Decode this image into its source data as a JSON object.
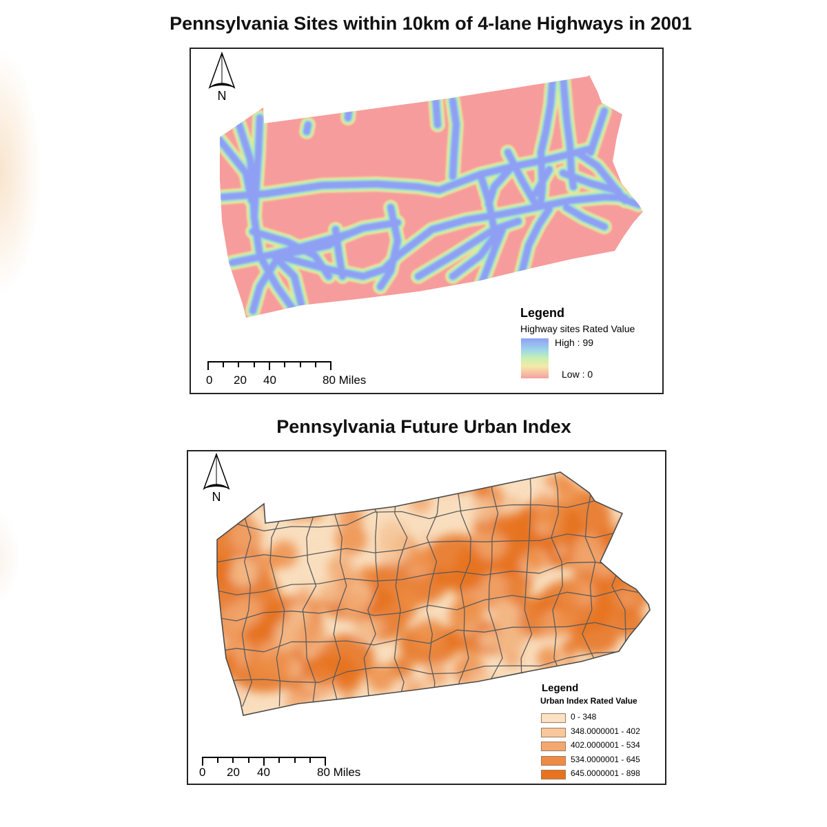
{
  "maps": [
    {
      "title": "Pennsylvania Sites within 10km of 4-lane Highways in 2001",
      "north_label": "N",
      "legend": {
        "title": "Legend",
        "subtitle": "Highway sites Rated Value",
        "high_label": "High : 99",
        "low_label": "Low : 0",
        "ramp_colors": [
          "#8ea0f6",
          "#9fd8e8",
          "#c8f0b0",
          "#f5e9a8",
          "#f6a0a0"
        ]
      },
      "scale": {
        "ticks": [
          "0",
          "20",
          "40",
          "80 Miles"
        ]
      },
      "colors": {
        "background": "#f69c9c",
        "highway": "#8fa0f4",
        "halo": "#a6e3cf"
      }
    },
    {
      "title": "Pennsylvania Future Urban Index",
      "north_label": "N",
      "legend": {
        "title": "Legend",
        "subtitle": "Urban Index Rated Value",
        "classes": [
          {
            "label": "0 - 348",
            "color": "#fbe2c4"
          },
          {
            "label": "348.0000001 - 402",
            "color": "#f8c89c"
          },
          {
            "label": "402.0000001 - 534",
            "color": "#f4a870"
          },
          {
            "label": "534.0000001 - 645",
            "color": "#ef8c44"
          },
          {
            "label": "645.0000001 - 898",
            "color": "#e8721e"
          }
        ]
      },
      "scale": {
        "ticks": [
          "0",
          "20",
          "40",
          "80 Miles"
        ]
      }
    }
  ]
}
